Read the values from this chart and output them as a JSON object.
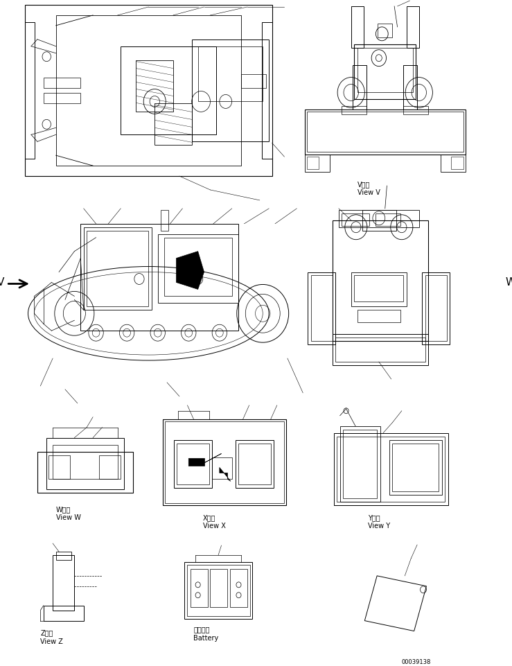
{
  "bg_color": "#ffffff",
  "lc": "#000000",
  "fig_w": 7.39,
  "fig_h": 9.62,
  "dpi": 100,
  "part_number": "00039138",
  "lbl_vv_jp": "V　視",
  "lbl_vv_en": "View V",
  "lbl_vw_jp": "W　視",
  "lbl_vw_en": "View W",
  "lbl_vx_jp": "X　視",
  "lbl_vx_en": "View X",
  "lbl_vy_jp": "Y　視",
  "lbl_vy_en": "View Y",
  "lbl_vz_jp": "Z　視",
  "lbl_vz_en": "View Z",
  "lbl_bat_jp": "バッテリ",
  "lbl_bat_en": "Battery",
  "lbl_V": "V",
  "lbl_W": "W",
  "fs": 7,
  "fs_big": 11,
  "fs_pn": 6
}
